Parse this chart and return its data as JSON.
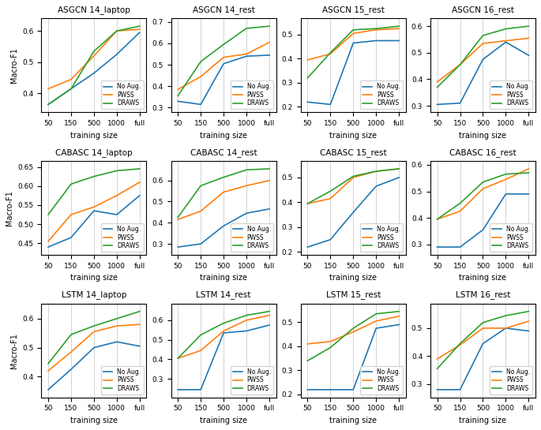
{
  "x_labels": [
    "50",
    "150",
    "500",
    "1000",
    "full"
  ],
  "x_vals": [
    0,
    1,
    2,
    3,
    4
  ],
  "colors": {
    "no_aug": "#1f77b4",
    "pwss": "#ff7f0e",
    "draws": "#2ca02c"
  },
  "titles": [
    [
      "ASGCN 14_laptop",
      "ASGCN 14_rest",
      "ASGCN 15_rest",
      "ASGCN 16_rest"
    ],
    [
      "CABASC 14_laptop",
      "CABASC 14_rest",
      "CABASC 15_rest",
      "CABASC 16_rest"
    ],
    [
      "LSTM 14_laptop",
      "LSTM 14_rest",
      "LSTM 15_rest",
      "LSTM 16_rest"
    ]
  ],
  "data": [
    [
      {
        "no_aug": [
          0.365,
          0.415,
          0.465,
          0.525,
          0.595
        ],
        "pwss": [
          0.415,
          0.445,
          0.52,
          0.6,
          0.605
        ],
        "draws": [
          0.365,
          0.415,
          0.535,
          0.6,
          0.615
        ]
      },
      {
        "no_aug": [
          0.33,
          0.315,
          0.505,
          0.54,
          0.545
        ],
        "pwss": [
          0.385,
          0.445,
          0.535,
          0.55,
          0.605
        ],
        "draws": [
          0.355,
          0.515,
          0.595,
          0.67,
          0.68
        ]
      },
      {
        "no_aug": [
          0.22,
          0.21,
          0.465,
          0.475,
          0.475
        ],
        "pwss": [
          0.395,
          0.42,
          0.505,
          0.52,
          0.525
        ],
        "draws": [
          0.32,
          0.425,
          0.52,
          0.525,
          0.535
        ]
      },
      {
        "no_aug": [
          0.305,
          0.31,
          0.475,
          0.54,
          0.49
        ],
        "pwss": [
          0.39,
          0.455,
          0.535,
          0.545,
          0.555
        ],
        "draws": [
          0.37,
          0.455,
          0.565,
          0.59,
          0.6
        ]
      }
    ],
    [
      {
        "no_aug": [
          0.44,
          0.465,
          0.535,
          0.525,
          0.575
        ],
        "pwss": [
          0.455,
          0.525,
          0.545,
          0.575,
          0.61
        ],
        "draws": [
          0.525,
          0.605,
          0.625,
          0.64,
          0.645
        ]
      },
      {
        "no_aug": [
          0.285,
          0.3,
          0.385,
          0.445,
          0.465
        ],
        "pwss": [
          0.415,
          0.455,
          0.545,
          0.575,
          0.6
        ],
        "draws": [
          0.425,
          0.575,
          0.615,
          0.65,
          0.655
        ]
      },
      {
        "no_aug": [
          0.22,
          0.25,
          0.36,
          0.465,
          0.5
        ],
        "pwss": [
          0.395,
          0.415,
          0.5,
          0.525,
          0.535
        ],
        "draws": [
          0.395,
          0.445,
          0.505,
          0.525,
          0.535
        ]
      },
      {
        "no_aug": [
          0.29,
          0.29,
          0.355,
          0.49,
          0.49
        ],
        "pwss": [
          0.395,
          0.425,
          0.51,
          0.545,
          0.585
        ],
        "draws": [
          0.395,
          0.455,
          0.535,
          0.565,
          0.57
        ]
      }
    ],
    [
      {
        "no_aug": [
          0.355,
          0.425,
          0.5,
          0.52,
          0.505
        ],
        "pwss": [
          0.42,
          0.485,
          0.555,
          0.575,
          0.58
        ],
        "draws": [
          0.445,
          0.545,
          0.575,
          0.6,
          0.625
        ]
      },
      {
        "no_aug": [
          0.245,
          0.245,
          0.535,
          0.545,
          0.575
        ],
        "pwss": [
          0.405,
          0.445,
          0.545,
          0.6,
          0.625
        ],
        "draws": [
          0.405,
          0.525,
          0.585,
          0.625,
          0.645
        ]
      },
      {
        "no_aug": [
          0.22,
          0.22,
          0.22,
          0.475,
          0.49
        ],
        "pwss": [
          0.41,
          0.42,
          0.46,
          0.505,
          0.525
        ],
        "draws": [
          0.34,
          0.395,
          0.475,
          0.535,
          0.545
        ]
      },
      {
        "no_aug": [
          0.28,
          0.28,
          0.445,
          0.5,
          0.49
        ],
        "pwss": [
          0.39,
          0.44,
          0.5,
          0.5,
          0.525
        ],
        "draws": [
          0.355,
          0.445,
          0.52,
          0.545,
          0.56
        ]
      }
    ]
  ],
  "legend_labels": [
    "No Aug.",
    "PWSS",
    "DRAWS"
  ],
  "xlabel": "training size",
  "ylabel": "Macro-F1",
  "figsize": [
    6.85,
    5.45
  ],
  "dpi": 100
}
